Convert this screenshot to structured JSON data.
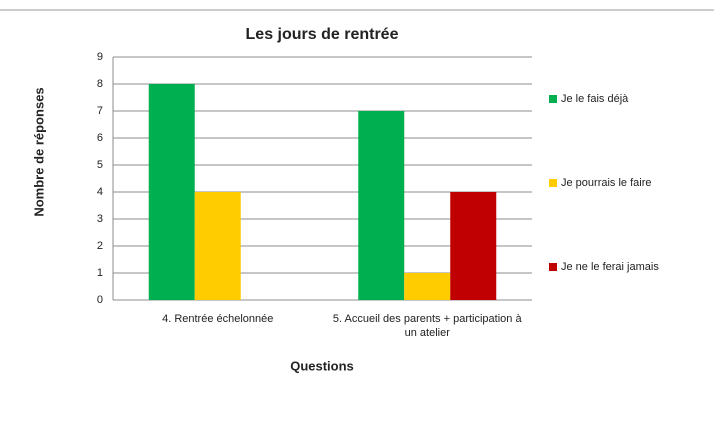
{
  "chart_data": {
    "type": "bar",
    "title": "Les jours de rentrée",
    "x_label": "Questions",
    "y_label": "Nombre de réponses",
    "categories": [
      "4. Rentrée échelonnée",
      "5. Accueil des parents + participation à un atelier"
    ],
    "series": [
      {
        "name": "Je le fais déjà",
        "color": "#00b050",
        "values": [
          8,
          7
        ]
      },
      {
        "name": "Je pourrais le faire",
        "color": "#ffcc00",
        "values": [
          4,
          1
        ]
      },
      {
        "name": "Je ne le ferai jamais",
        "color": "#c00000",
        "values": [
          0,
          4
        ]
      }
    ],
    "ylim": [
      0,
      9
    ],
    "yticks": [
      0,
      1,
      2,
      3,
      4,
      5,
      6,
      7,
      8,
      9
    ],
    "grid": true,
    "legend": "right"
  }
}
